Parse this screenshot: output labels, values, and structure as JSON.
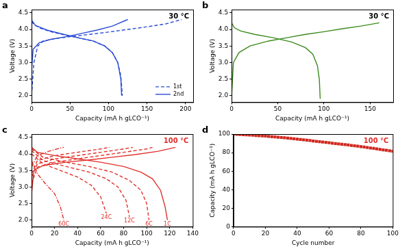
{
  "chart_data": [
    {
      "type": "line",
      "title": "a",
      "x_label": "Capacity (mA h gLCO⁻¹)",
      "y_label": "Voltage (V)",
      "annotations": [
        {
          "text": "30 °C",
          "color": "#000000"
        }
      ],
      "xlim": [
        0,
        210
      ],
      "xticks": [
        0,
        50,
        100,
        150,
        200
      ],
      "ylim": [
        1.8,
        4.6
      ],
      "yticks": [
        {
          "value": 2,
          "label": "2.0"
        },
        2.5,
        {
          "value": 3,
          "label": "3.0"
        },
        3.5,
        {
          "value": 4,
          "label": "4.0"
        },
        4.5
      ],
      "grid": false,
      "legend": "lower right",
      "series": [
        {
          "name": "1st",
          "color": "#2a4bd7",
          "line_style": "dashed",
          "x": [
            0,
            3,
            8,
            15,
            30,
            50,
            75,
            100,
            125,
            150,
            175,
            195,
            null,
            0,
            3,
            10,
            25,
            40,
            60,
            80,
            95,
            105,
            112,
            116,
            118
          ],
          "values": [
            2.0,
            3.0,
            3.5,
            3.65,
            3.72,
            3.78,
            3.85,
            3.92,
            4.0,
            4.08,
            4.17,
            4.3,
            null,
            4.25,
            4.15,
            4.05,
            3.93,
            3.85,
            3.75,
            3.65,
            3.5,
            3.3,
            3.0,
            2.6,
            2.0
          ]
        },
        {
          "name": "2nd",
          "color": "#2a4bd7",
          "line_style": "solid",
          "x": [
            0,
            2,
            10,
            25,
            45,
            65,
            85,
            105,
            125,
            null,
            0,
            5,
            20,
            40,
            60,
            80,
            95,
            105,
            112,
            116,
            117
          ],
          "values": [
            2.8,
            3.4,
            3.6,
            3.7,
            3.78,
            3.88,
            3.98,
            4.1,
            4.3,
            null,
            4.28,
            4.12,
            3.98,
            3.86,
            3.75,
            3.65,
            3.5,
            3.3,
            3.0,
            2.5,
            2.0
          ]
        }
      ]
    },
    {
      "type": "line",
      "title": "b",
      "x_label": "Capacity (mA h gLCO⁻¹)",
      "y_label": "Voltage (V)",
      "annotations": [
        {
          "text": "30 °C",
          "color": "#000000"
        }
      ],
      "xlim": [
        0,
        175
      ],
      "xticks": [
        0,
        50,
        100,
        150
      ],
      "ylim": [
        1.8,
        4.6
      ],
      "yticks": [
        {
          "value": 2,
          "label": "2.0"
        },
        2.5,
        {
          "value": 3,
          "label": "3.0"
        },
        3.5,
        {
          "value": 4,
          "label": "4.0"
        },
        4.5
      ],
      "grid": false,
      "series": [
        {
          "color": "#3a8a1c",
          "line_style": "solid",
          "x": [
            0,
            2,
            8,
            20,
            40,
            60,
            80,
            100,
            120,
            140,
            160,
            null,
            0,
            3,
            10,
            25,
            45,
            65,
            80,
            88,
            93,
            95,
            96
          ],
          "values": [
            2.0,
            3.0,
            3.3,
            3.5,
            3.65,
            3.75,
            3.85,
            3.93,
            4.02,
            4.1,
            4.2,
            null,
            4.2,
            4.05,
            3.95,
            3.85,
            3.75,
            3.62,
            3.45,
            3.25,
            2.9,
            2.5,
            1.9
          ]
        }
      ]
    },
    {
      "type": "line",
      "title": "c",
      "x_label": "Capacity (mA h gLCO⁻¹)",
      "y_label": "Voltage (V)",
      "annotations": [
        {
          "text": "100 °C",
          "color": "#e0302a"
        }
      ],
      "xlim": [
        0,
        140
      ],
      "xticks": [
        0,
        20,
        40,
        60,
        80,
        100,
        120,
        140
      ],
      "ylim": [
        1.8,
        4.6
      ],
      "yticks": [
        {
          "value": 2,
          "label": "2.0"
        },
        2.5,
        {
          "value": 3,
          "label": "3.0"
        },
        3.5,
        {
          "value": 4,
          "label": "4.0"
        },
        4.5
      ],
      "grid": false,
      "legend": "inline",
      "series": [
        {
          "name": "60C",
          "color": "#e0302a",
          "line_style": "dashdot",
          "x": [
            0,
            5,
            15,
            25,
            28,
            null,
            0,
            5,
            12,
            20,
            25,
            28
          ],
          "values": [
            3.6,
            3.95,
            4.08,
            4.18,
            4.2,
            null,
            3.8,
            3.4,
            3.1,
            2.8,
            2.4,
            2.0
          ]
        },
        {
          "name": "24C",
          "color": "#e0302a",
          "line_style": "dashed",
          "x": [
            0,
            5,
            20,
            40,
            60,
            68,
            null,
            0,
            10,
            25,
            40,
            52,
            60,
            65
          ],
          "values": [
            3.4,
            3.8,
            3.95,
            4.05,
            4.15,
            4.2,
            null,
            4.0,
            3.7,
            3.5,
            3.3,
            3.05,
            2.7,
            2.2
          ]
        },
        {
          "name": "12C",
          "color": "#e0302a",
          "line_style": "dashed",
          "x": [
            0,
            5,
            20,
            40,
            60,
            80,
            88,
            null,
            0,
            10,
            30,
            50,
            65,
            75,
            82,
            85
          ],
          "values": [
            3.3,
            3.7,
            3.85,
            3.95,
            4.05,
            4.15,
            4.2,
            null,
            4.1,
            3.8,
            3.62,
            3.45,
            3.25,
            3.0,
            2.6,
            2.1
          ]
        },
        {
          "name": "6C",
          "color": "#e0302a",
          "line_style": "dashed",
          "x": [
            0,
            5,
            20,
            40,
            60,
            80,
            100,
            105,
            null,
            0,
            10,
            30,
            50,
            70,
            85,
            95,
            100,
            102
          ],
          "values": [
            3.1,
            3.6,
            3.75,
            3.85,
            3.95,
            4.05,
            4.15,
            4.2,
            null,
            4.15,
            3.9,
            3.75,
            3.62,
            3.45,
            3.2,
            2.9,
            2.5,
            2.0
          ]
        },
        {
          "name": "1C",
          "color": "#e0302a",
          "line_style": "solid",
          "x": [
            0,
            2,
            10,
            30,
            50,
            70,
            90,
            110,
            125,
            null,
            0,
            5,
            20,
            40,
            60,
            80,
            95,
            105,
            112,
            116,
            118
          ],
          "values": [
            2.8,
            3.5,
            3.65,
            3.75,
            3.82,
            3.9,
            3.98,
            4.08,
            4.2,
            null,
            4.2,
            4.05,
            3.95,
            3.85,
            3.75,
            3.62,
            3.45,
            3.25,
            2.9,
            2.4,
            2.0
          ]
        }
      ]
    },
    {
      "type": "scatter",
      "title": "d",
      "x_label": "Cycle number",
      "y_label": "Capacity (mA h gLCO⁻¹)",
      "annotations": [
        {
          "text": "100 °C",
          "color": "#e0302a"
        }
      ],
      "xlim": [
        0,
        100
      ],
      "xticks": [
        0,
        20,
        40,
        60,
        80,
        100
      ],
      "ylim": [
        0,
        100
      ],
      "yticks": [
        0,
        20,
        40,
        60,
        80,
        100
      ],
      "grid": false,
      "series": [
        {
          "color": "#d0281f",
          "marker": "square",
          "x": [
            0,
            2,
            4,
            6,
            8,
            10,
            12,
            14,
            16,
            18,
            20,
            22,
            24,
            26,
            28,
            30,
            32,
            34,
            36,
            38,
            40,
            42,
            44,
            46,
            48,
            50,
            52,
            54,
            56,
            58,
            60,
            62,
            64,
            66,
            68,
            70,
            72,
            74,
            76,
            78,
            80,
            82,
            84,
            86,
            88,
            90,
            92,
            94,
            96,
            98,
            100
          ],
          "values": [
            100,
            99.8,
            99.6,
            99.4,
            99.2,
            99,
            98.8,
            98.5,
            98.3,
            98,
            97.8,
            97.5,
            97.2,
            96.9,
            96.6,
            96.3,
            96,
            95.7,
            95.3,
            95,
            94.6,
            94.2,
            93.8,
            93.4,
            93,
            92.6,
            92.2,
            91.8,
            91.4,
            91,
            90.6,
            90.2,
            89.8,
            89.4,
            89,
            88.6,
            88.2,
            87.8,
            87.3,
            86.9,
            86.4,
            86,
            85.5,
            85,
            84.5,
            84,
            83.5,
            83,
            82.5,
            82,
            81.5
          ]
        }
      ]
    }
  ]
}
